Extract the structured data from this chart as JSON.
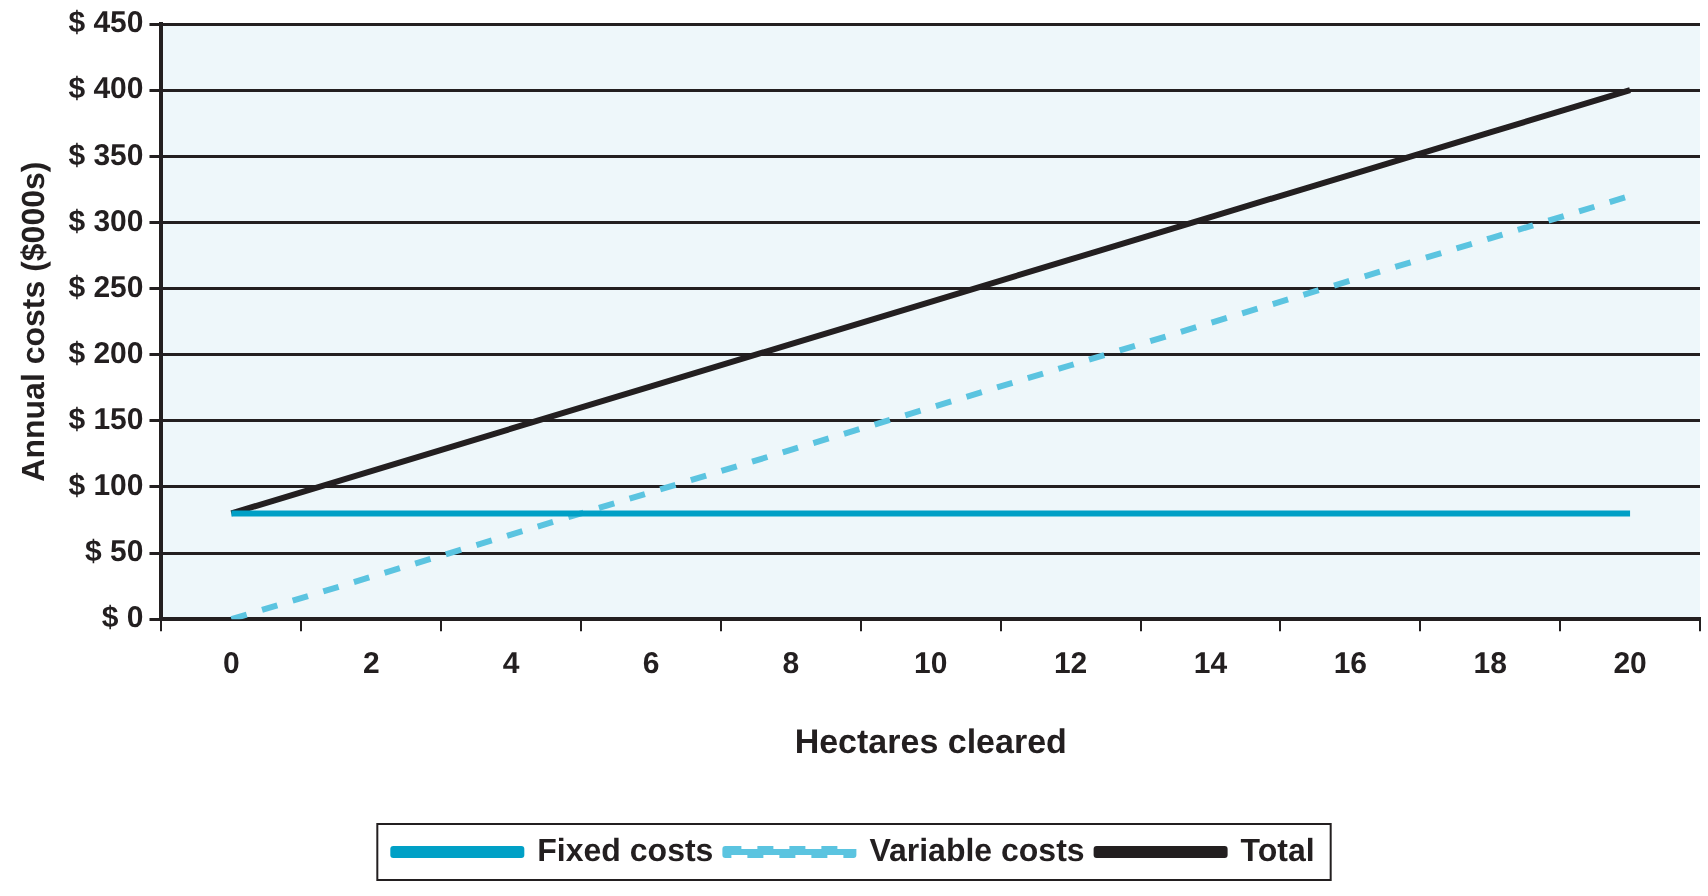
{
  "chart_data": {
    "type": "line",
    "xlabel": "Hectares cleared",
    "ylabel": "Annual costs ($000s)",
    "categories": [
      "0",
      "2",
      "4",
      "6",
      "8",
      "10",
      "12",
      "14",
      "16",
      "18",
      "20"
    ],
    "series": [
      {
        "name": "Fixed costs",
        "color": "#00a0c6",
        "values": [
          80,
          80,
          80,
          80,
          80,
          80,
          80,
          80,
          80,
          80,
          80
        ]
      },
      {
        "name": "Variable costs",
        "color": "#5bc4e0",
        "line_style": "dashed",
        "values": [
          0,
          32,
          64,
          96,
          128,
          160,
          192,
          224,
          256,
          288,
          320
        ]
      },
      {
        "name": "Total",
        "color": "#231f20",
        "values": [
          80,
          112,
          144,
          176,
          208,
          240,
          272,
          304,
          336,
          368,
          400
        ]
      }
    ],
    "ylim": [
      0,
      450
    ],
    "yticks": [
      {
        "value": 0,
        "label": "$ 0"
      },
      {
        "value": 50,
        "label": "$ 50"
      },
      {
        "value": 100,
        "label": "$ 100"
      },
      {
        "value": 150,
        "label": "$ 150"
      },
      {
        "value": 200,
        "label": "$ 200"
      },
      {
        "value": 250,
        "label": "$ 250"
      },
      {
        "value": 300,
        "label": "$ 300"
      },
      {
        "value": 350,
        "label": "$ 350"
      },
      {
        "value": 400,
        "label": "$ 400"
      },
      {
        "value": 450,
        "label": "$ 450"
      }
    ],
    "grid": "y",
    "legend": "bottom",
    "marker": "none",
    "line_style": "solid"
  }
}
